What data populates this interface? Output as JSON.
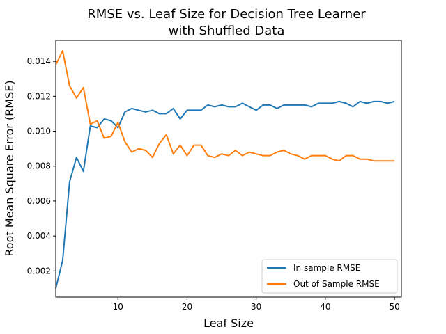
{
  "chart_data": {
    "type": "line",
    "title_line1": "RMSE vs. Leaf Size for Decision Tree Learner",
    "title_line2": "with Shuffled Data",
    "xlabel": "Leaf Size",
    "ylabel": "Root Mean Square Error (RMSE)",
    "xlim": [
      1,
      51
    ],
    "ylim": [
      0.0005,
      0.0152
    ],
    "xticks": [
      10,
      20,
      30,
      40,
      50
    ],
    "xtick_labels": [
      "10",
      "20",
      "30",
      "40",
      "50"
    ],
    "yticks": [
      0.002,
      0.004,
      0.006,
      0.008,
      0.01,
      0.012,
      0.014
    ],
    "ytick_labels": [
      "0.002",
      "0.004",
      "0.006",
      "0.008",
      "0.010",
      "0.012",
      "0.014"
    ],
    "grid": false,
    "legend_position": "lower-right",
    "x": [
      1,
      2,
      3,
      4,
      5,
      6,
      7,
      8,
      9,
      10,
      11,
      12,
      13,
      14,
      15,
      16,
      17,
      18,
      19,
      20,
      21,
      22,
      23,
      24,
      25,
      26,
      27,
      28,
      29,
      30,
      31,
      32,
      33,
      34,
      35,
      36,
      37,
      38,
      39,
      40,
      41,
      42,
      43,
      44,
      45,
      46,
      47,
      48,
      49,
      50
    ],
    "series": [
      {
        "name": "In sample RMSE",
        "color": "#1f77b4",
        "values": [
          0.001,
          0.0026,
          0.0071,
          0.0085,
          0.0077,
          0.0103,
          0.0102,
          0.0107,
          0.0106,
          0.0102,
          0.0111,
          0.0113,
          0.0112,
          0.0111,
          0.0112,
          0.011,
          0.011,
          0.0113,
          0.0107,
          0.0112,
          0.0112,
          0.0112,
          0.0115,
          0.0114,
          0.0115,
          0.0114,
          0.0114,
          0.0116,
          0.0114,
          0.0112,
          0.0115,
          0.0115,
          0.0113,
          0.0115,
          0.0115,
          0.0115,
          0.0115,
          0.0114,
          0.0116,
          0.0116,
          0.0116,
          0.0117,
          0.0116,
          0.0114,
          0.0117,
          0.0116,
          0.0117,
          0.0117,
          0.0116,
          0.0117
        ]
      },
      {
        "name": "Out of Sample RMSE",
        "color": "#ff7f0e",
        "values": [
          0.0138,
          0.0146,
          0.0126,
          0.0119,
          0.0125,
          0.0104,
          0.0106,
          0.0096,
          0.0097,
          0.0105,
          0.0094,
          0.0088,
          0.009,
          0.0089,
          0.0085,
          0.0093,
          0.0098,
          0.0087,
          0.0092,
          0.0086,
          0.0092,
          0.0092,
          0.0086,
          0.0085,
          0.0087,
          0.0086,
          0.0089,
          0.0086,
          0.0088,
          0.0087,
          0.0086,
          0.0086,
          0.0088,
          0.0089,
          0.0087,
          0.0086,
          0.0084,
          0.0086,
          0.0086,
          0.0086,
          0.0084,
          0.0083,
          0.0086,
          0.0086,
          0.0084,
          0.0084,
          0.0083,
          0.0083,
          0.0083,
          0.0083
        ]
      }
    ]
  }
}
